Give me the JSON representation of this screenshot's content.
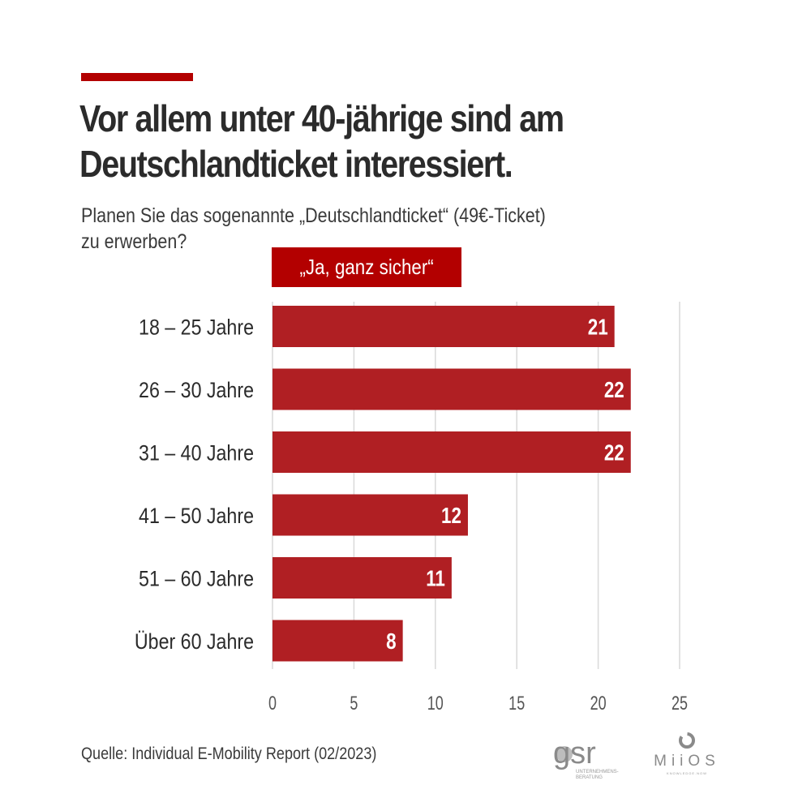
{
  "header": {
    "title_line1": "Vor allem unter 40-jährige sind am",
    "title_line2": "Deutschlandticket interessiert.",
    "subtitle_line1": "Planen Sie das sogenannte „Deutschlandticket“ (49€-Ticket)",
    "subtitle_line2": "zu erwerben?"
  },
  "colors": {
    "accent": "#b30000",
    "bar": "#b01f23",
    "grid": "#d9d9d9",
    "text": "#2b2b2b"
  },
  "chart_data": {
    "type": "bar",
    "orientation": "horizontal",
    "title": "Vor allem unter 40-jährige sind am Deutschlandticket interessiert.",
    "subtitle": "Planen Sie das sogenannte „Deutschlandticket“ (49€-Ticket) zu erwerben?",
    "legend": [
      "„Ja, ganz sicher“"
    ],
    "legend_position": "top",
    "categories": [
      "18 – 25 Jahre",
      "26 – 30 Jahre",
      "31 – 40 Jahre",
      "41 – 50 Jahre",
      "51 – 60 Jahre",
      "Über 60 Jahre"
    ],
    "series": [
      {
        "name": "„Ja, ganz sicher“",
        "values": [
          21,
          22,
          22,
          12,
          11,
          8
        ]
      }
    ],
    "xlabel": "",
    "ylabel": "",
    "xlim": [
      0,
      25
    ],
    "xticks": [
      0,
      5,
      10,
      15,
      20,
      25
    ],
    "grid": true
  },
  "footer": {
    "source": "Quelle: Individual E-Mobility Report (02/2023)",
    "logo1_text": "gsr",
    "logo1_sub1": "UNTERNEHMENS-",
    "logo1_sub2": "BERATUNG",
    "logo2_text": "MiiOS",
    "logo2_sub": "KNOWLEDGE.NOW"
  }
}
